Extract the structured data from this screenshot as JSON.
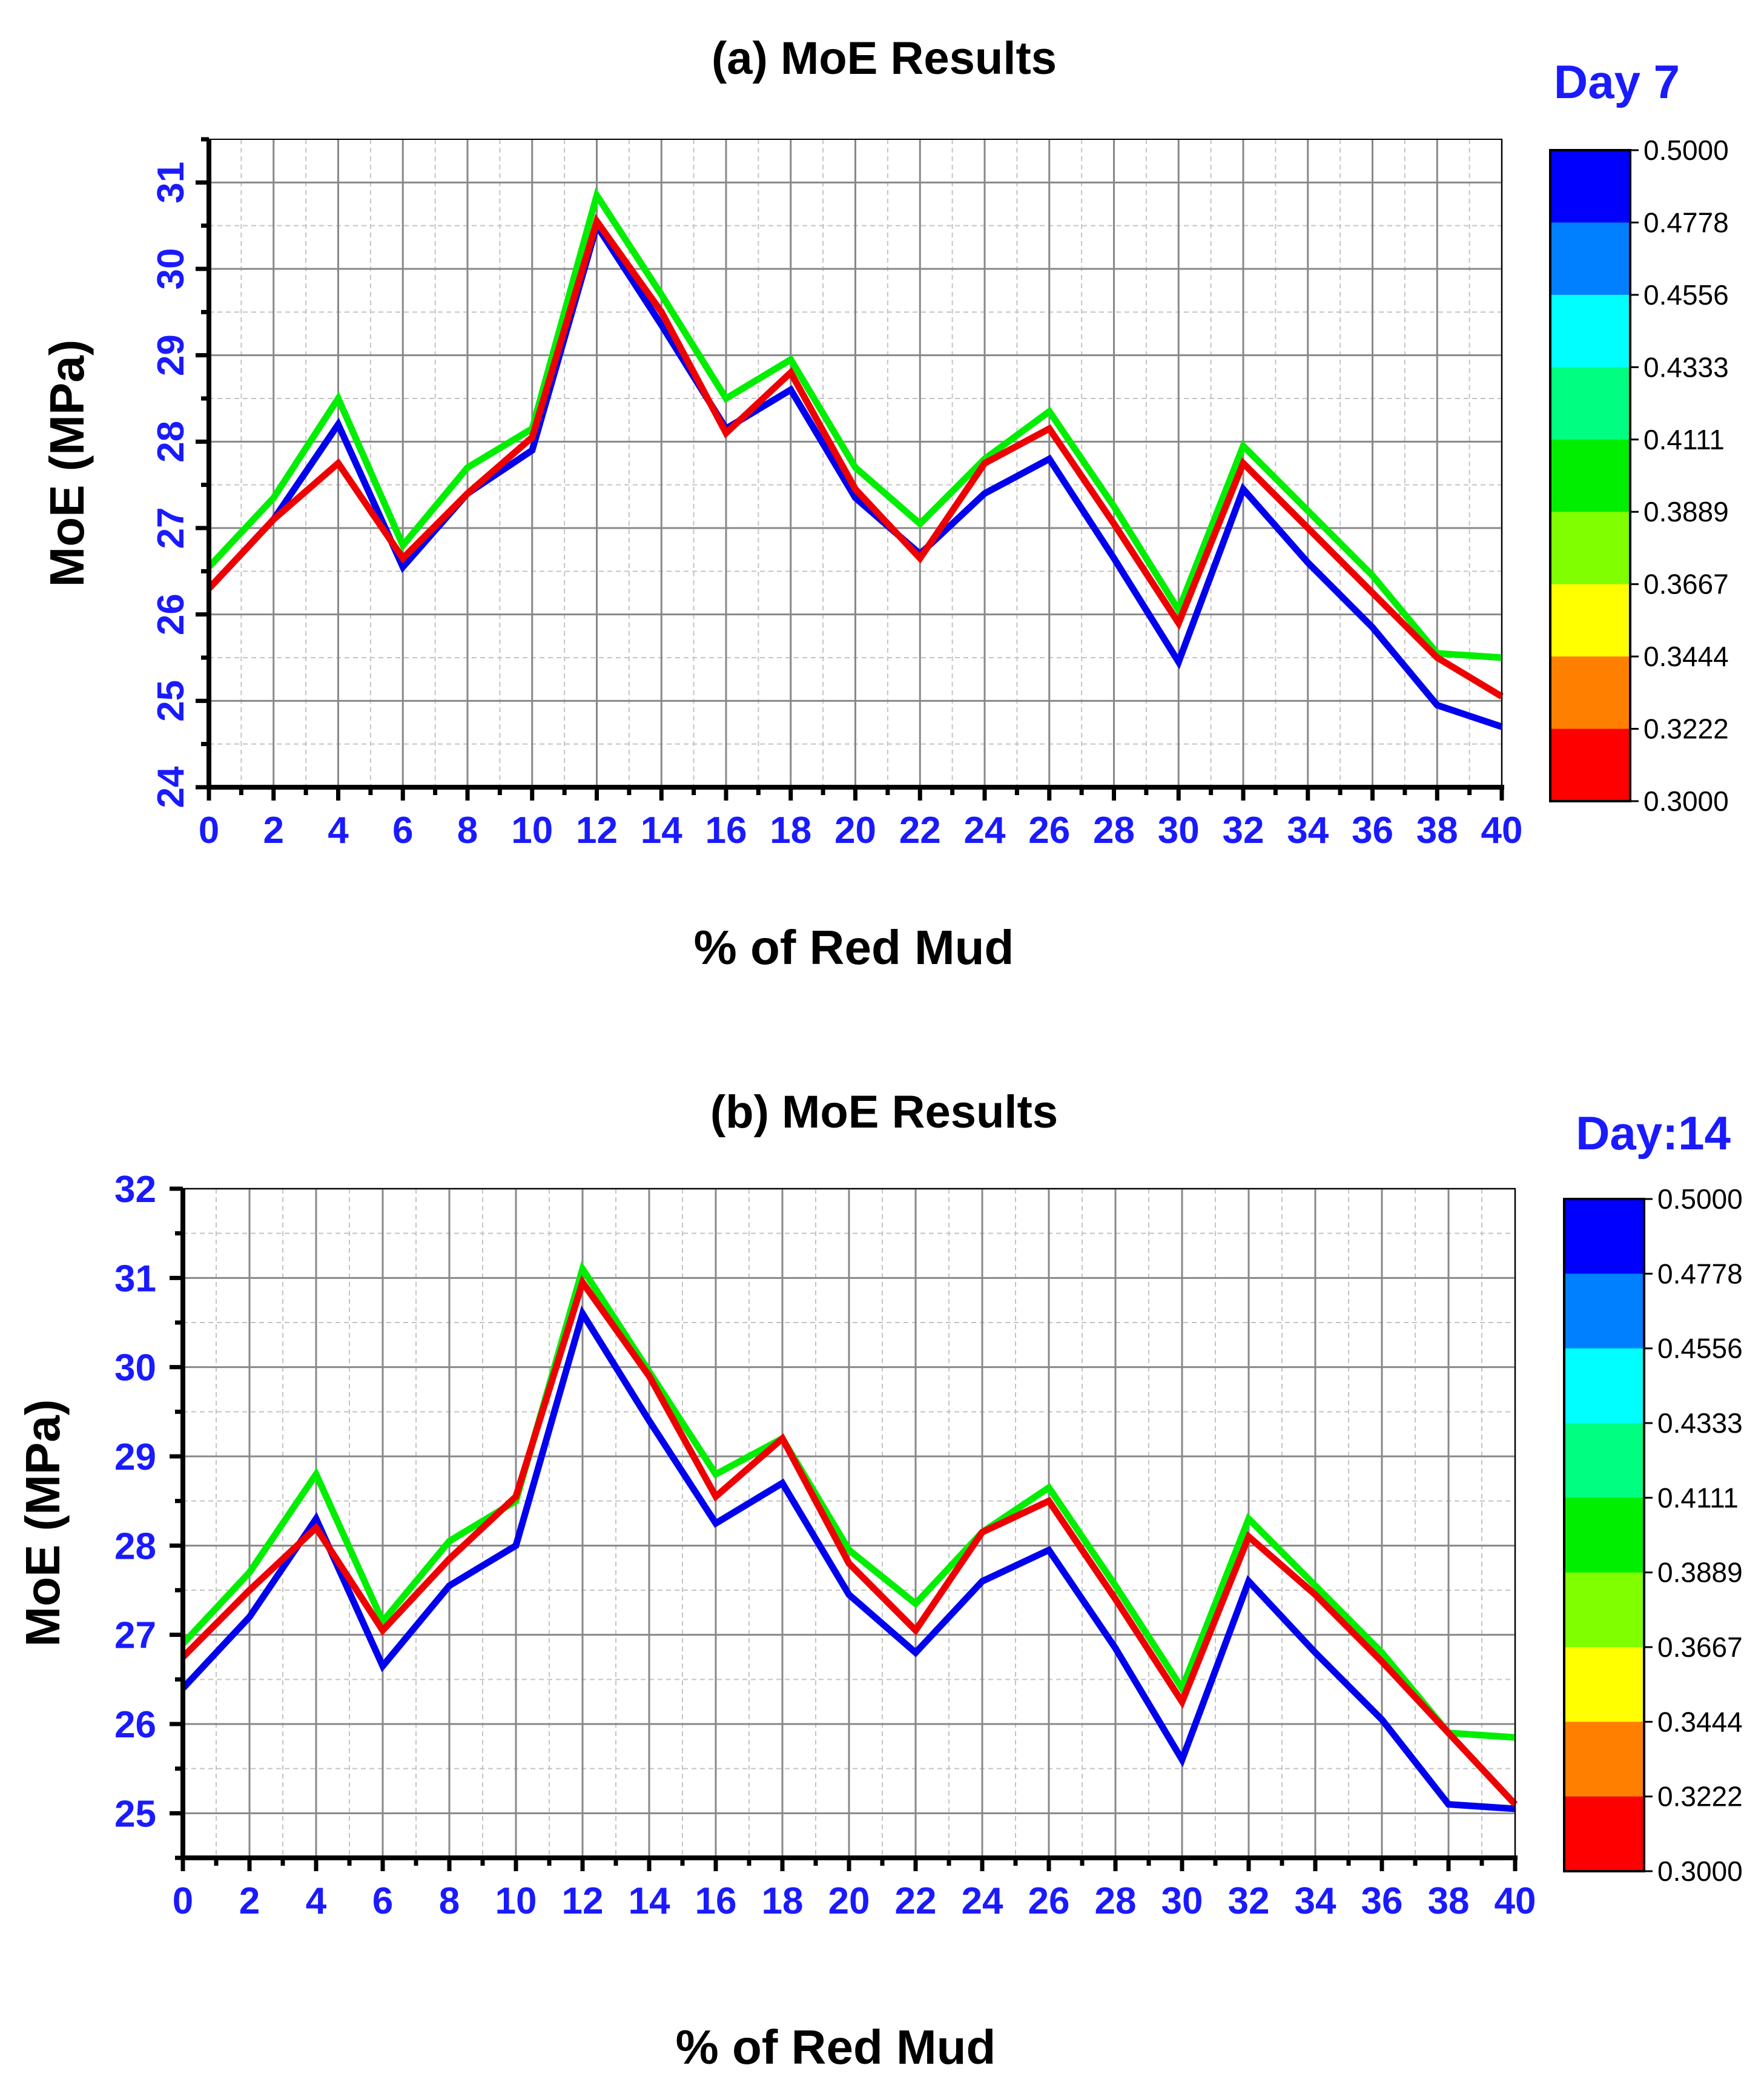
{
  "chart_data": [
    {
      "type": "line",
      "title": "(a) MoE Results",
      "day_label": "Day 7",
      "xlabel": "% of Red Mud",
      "ylabel": "MoE (MPa)",
      "xlim": [
        0,
        40
      ],
      "ylim": [
        24,
        31.5
      ],
      "x_ticks": [
        "0",
        "2",
        "4",
        "6",
        "8",
        "10",
        "12",
        "14",
        "16",
        "18",
        "20",
        "22",
        "24",
        "26",
        "28",
        "30",
        "32",
        "34",
        "36",
        "38",
        "40"
      ],
      "y_ticks": [
        "24",
        "25",
        "26",
        "27",
        "28",
        "29",
        "30",
        "31"
      ],
      "x": [
        0,
        2,
        4,
        6,
        8,
        10,
        12,
        14,
        16,
        18,
        20,
        22,
        24,
        26,
        28,
        30,
        32,
        34,
        36,
        38,
        40
      ],
      "series": [
        {
          "name": "0.4111",
          "color": "#00ee00",
          "values": [
            26.55,
            27.35,
            28.5,
            26.8,
            27.7,
            28.15,
            30.85,
            29.7,
            28.5,
            28.95,
            27.7,
            27.05,
            27.8,
            28.35,
            27.25,
            26.05,
            27.95,
            27.2,
            26.45,
            25.55,
            25.5
          ]
        },
        {
          "name": "0.5000",
          "color": "#0000ee",
          "values": [
            26.3,
            27.1,
            28.2,
            26.55,
            27.4,
            27.9,
            30.5,
            29.35,
            28.15,
            28.6,
            27.35,
            26.7,
            27.4,
            27.8,
            26.65,
            25.45,
            27.45,
            26.6,
            25.85,
            24.95,
            24.7
          ]
        },
        {
          "name": "0.3000",
          "color": "#ee0000",
          "values": [
            26.3,
            27.1,
            27.75,
            26.65,
            27.4,
            28.05,
            30.55,
            29.5,
            28.1,
            28.8,
            27.45,
            26.65,
            27.75,
            28.15,
            27.05,
            25.9,
            27.75,
            27.0,
            26.25,
            25.5,
            25.05
          ]
        }
      ],
      "colorbar": {
        "labels": [
          "0.5000",
          "0.4778",
          "0.4556",
          "0.4333",
          "0.4111",
          "0.3889",
          "0.3667",
          "0.3444",
          "0.3222",
          "0.3000"
        ],
        "colors": [
          "#0000ff",
          "#0080ff",
          "#00ffff",
          "#00ff80",
          "#00ee00",
          "#80ff00",
          "#ffff00",
          "#ff8000",
          "#ff0000"
        ]
      }
    },
    {
      "type": "line",
      "title": "(b) MoE Results",
      "day_label": "Day:14",
      "xlabel": "% of Red Mud",
      "ylabel": "MoE (MPa)",
      "xlim": [
        0,
        40
      ],
      "ylim": [
        24.5,
        32
      ],
      "x_ticks": [
        "0",
        "2",
        "4",
        "6",
        "8",
        "10",
        "12",
        "14",
        "16",
        "18",
        "20",
        "22",
        "24",
        "26",
        "28",
        "30",
        "32",
        "34",
        "36",
        "38",
        "40"
      ],
      "y_ticks": [
        "25",
        "26",
        "27",
        "28",
        "29",
        "30",
        "31",
        "32"
      ],
      "x": [
        0,
        2,
        4,
        6,
        8,
        10,
        12,
        14,
        16,
        18,
        20,
        22,
        24,
        26,
        28,
        30,
        32,
        34,
        36,
        38,
        40
      ],
      "series": [
        {
          "name": "0.4111",
          "color": "#00ee00",
          "values": [
            26.9,
            27.7,
            28.8,
            27.15,
            28.05,
            28.5,
            31.1,
            29.95,
            28.8,
            29.2,
            27.95,
            27.35,
            28.15,
            28.65,
            27.55,
            26.4,
            28.3,
            27.55,
            26.8,
            25.9,
            25.85
          ]
        },
        {
          "name": "0.5000",
          "color": "#0000ee",
          "values": [
            26.4,
            27.2,
            28.3,
            26.65,
            27.55,
            28.0,
            30.6,
            29.4,
            28.25,
            28.7,
            27.45,
            26.8,
            27.6,
            27.95,
            26.85,
            25.6,
            27.6,
            26.8,
            26.05,
            25.1,
            25.05
          ]
        },
        {
          "name": "0.3000",
          "color": "#ee0000",
          "values": [
            26.75,
            27.5,
            28.2,
            27.05,
            27.85,
            28.55,
            30.95,
            29.9,
            28.55,
            29.2,
            27.8,
            27.05,
            28.15,
            28.5,
            27.4,
            26.25,
            28.1,
            27.45,
            26.7,
            25.9,
            25.1
          ]
        }
      ],
      "colorbar": {
        "labels": [
          "0.5000",
          "0.4778",
          "0.4556",
          "0.4333",
          "0.4111",
          "0.3889",
          "0.3667",
          "0.3444",
          "0.3222",
          "0.3000"
        ],
        "colors": [
          "#0000ff",
          "#0080ff",
          "#00ffff",
          "#00ff80",
          "#00ee00",
          "#80ff00",
          "#ffff00",
          "#ff8000",
          "#ff0000"
        ]
      }
    }
  ]
}
